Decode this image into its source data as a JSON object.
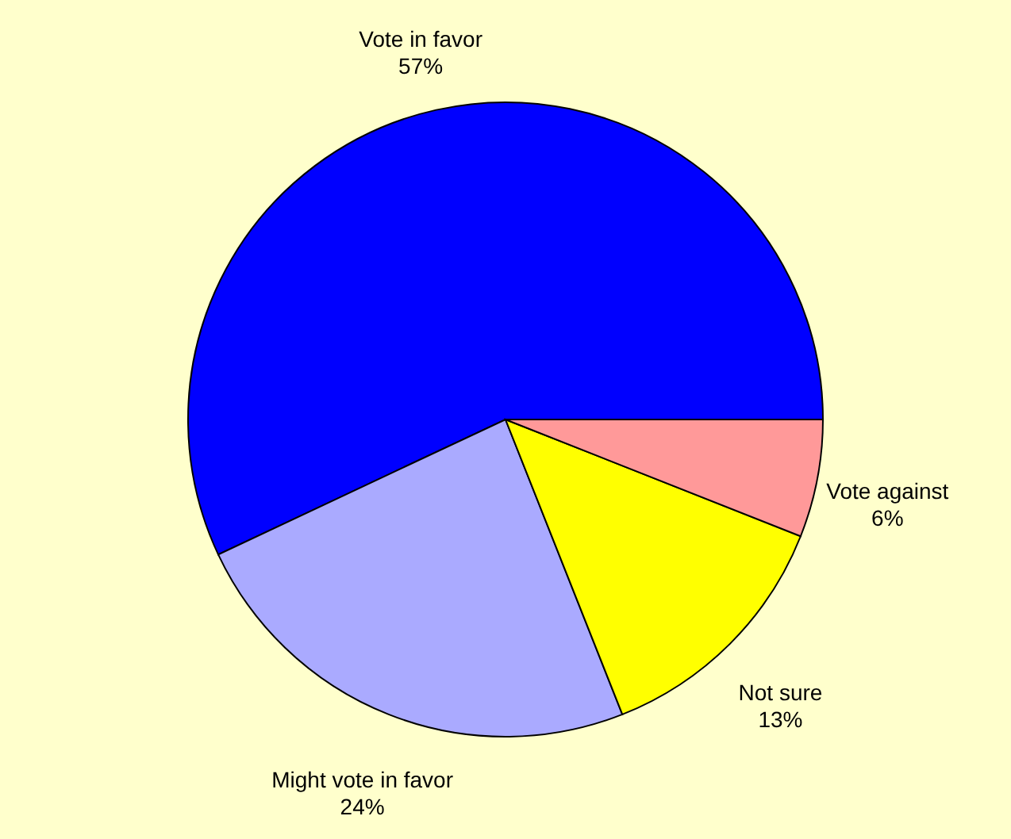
{
  "chart_data": {
    "type": "pie",
    "categories": [
      "Vote in favor",
      "Might vote in favor",
      "Not sure",
      "Vote against"
    ],
    "values": [
      57,
      24,
      13,
      6
    ],
    "value_labels": [
      "57%",
      "24%",
      "13%",
      "6%"
    ],
    "colors": [
      "#0000ff",
      "#aaaaff",
      "#ffff00",
      "#ff9999"
    ]
  }
}
